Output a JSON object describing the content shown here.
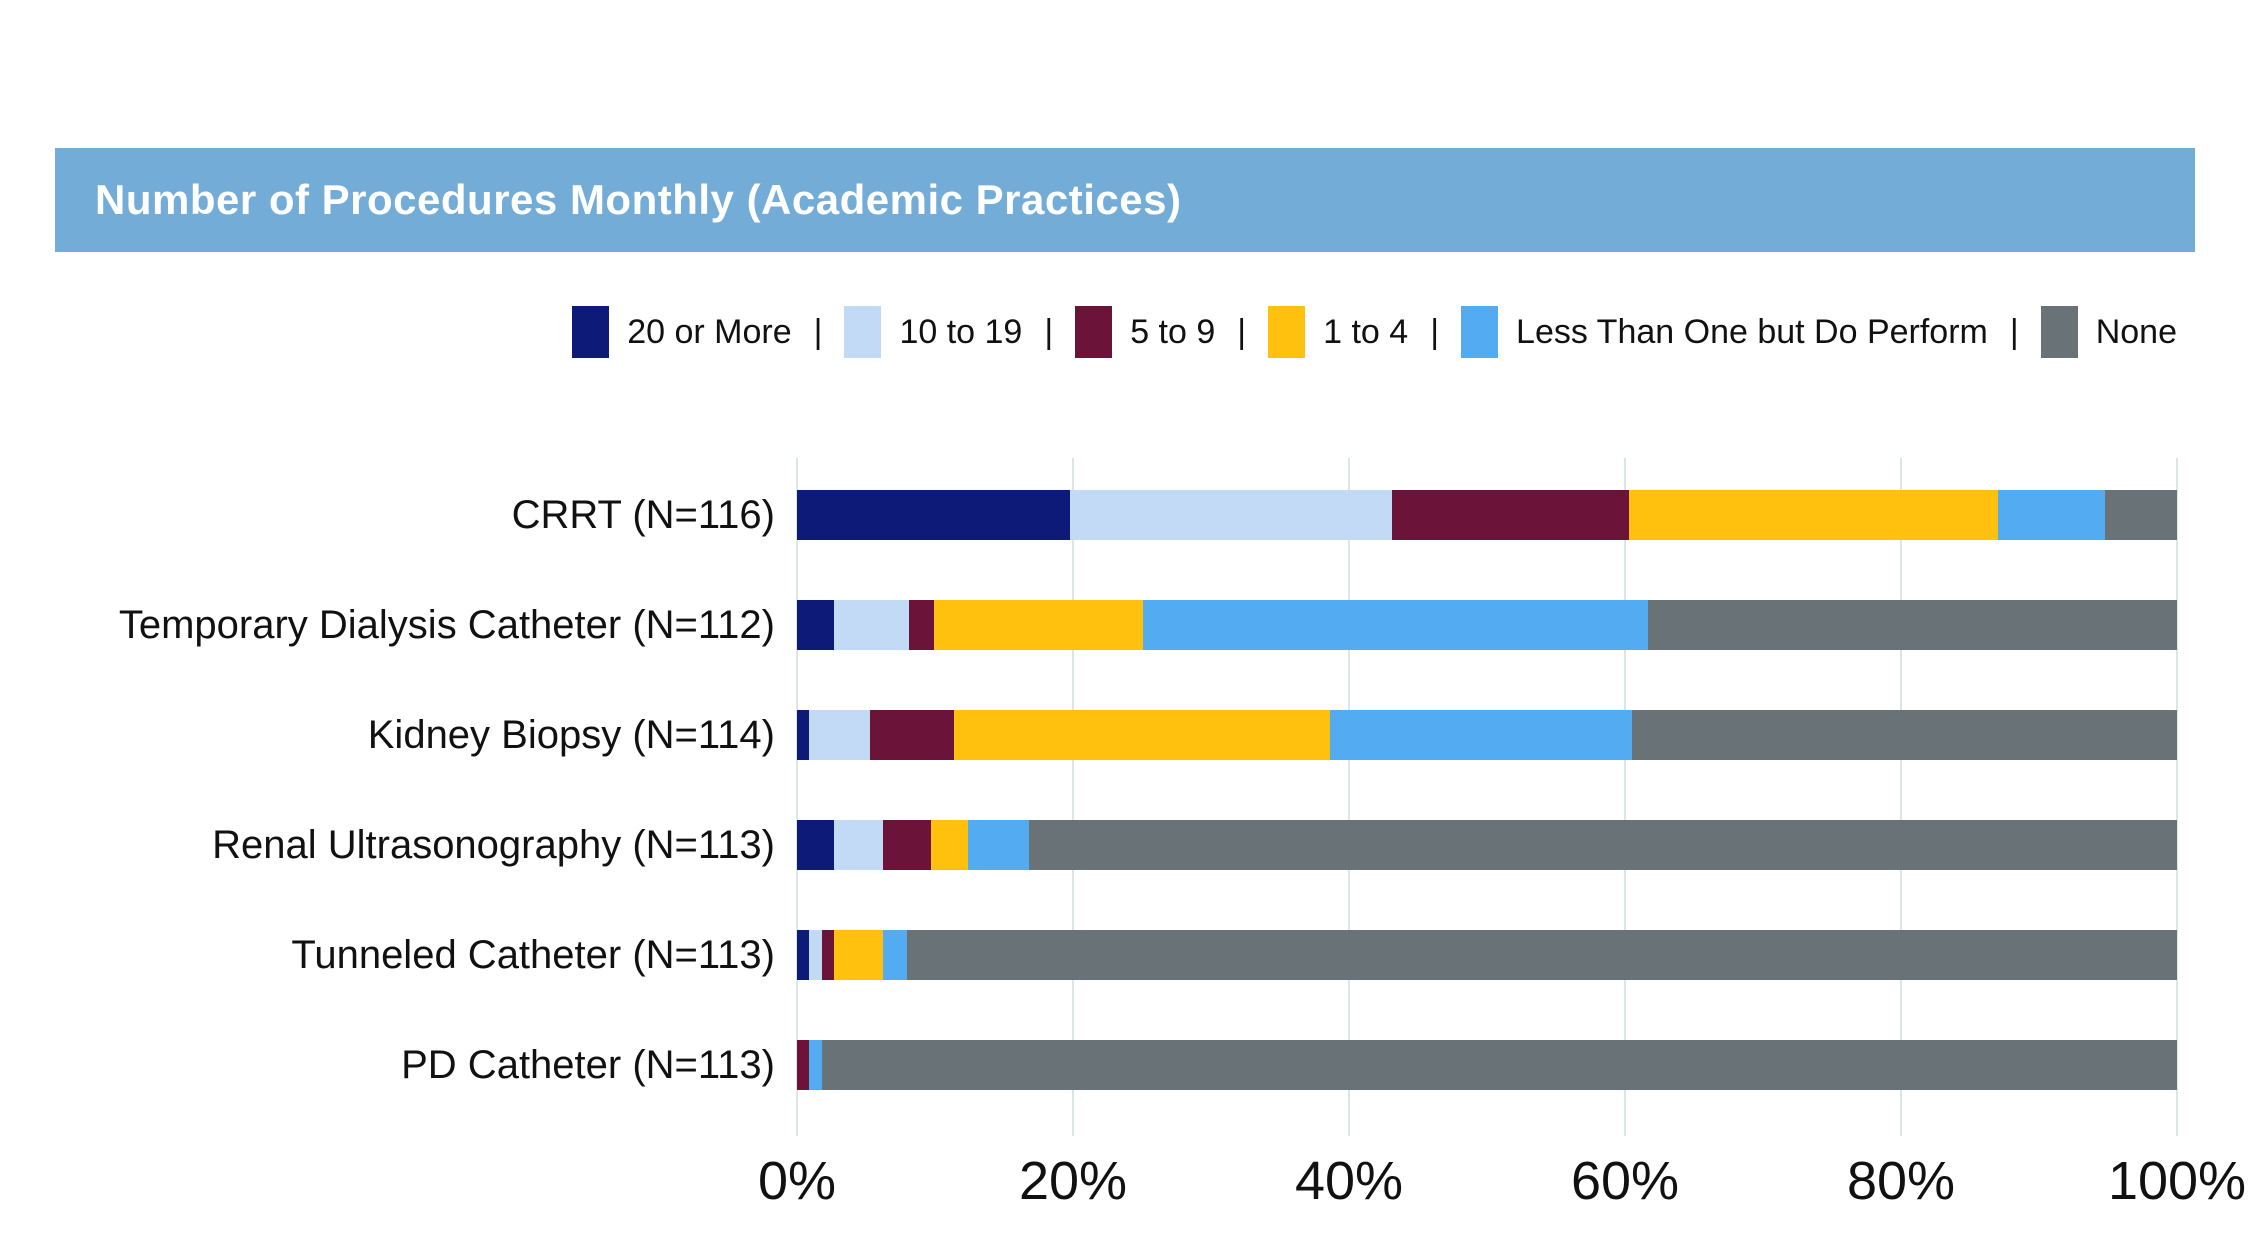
{
  "title_bar": {
    "text": "Number of Procedures Monthly (Academic Practices)",
    "bg_color": "#73ACD6",
    "text_color": "#FFFFFF"
  },
  "legend": {
    "separator": "|",
    "items": [
      {
        "label": "20 or More",
        "color": "#0D1A78"
      },
      {
        "label": "10 to 19",
        "color": "#C3DAF6"
      },
      {
        "label": "5 to 9",
        "color": "#6B1339"
      },
      {
        "label": "1 to 4",
        "color": "#FFC10E"
      },
      {
        "label": "Less Than One but Do Perform",
        "color": "#53ACF1"
      },
      {
        "label": "None",
        "color": "#697276"
      }
    ]
  },
  "chart_data": {
    "type": "bar",
    "orientation": "horizontal",
    "stacked": true,
    "title": "Number of Procedures Monthly (Academic Practices)",
    "categories": [
      "CRRT (N=116)",
      "Temporary Dialysis Catheter (N=112)",
      "Kidney Biopsy (N=114)",
      "Renal Ultrasonography (N=113)",
      "Tunneled Catheter (N=113)",
      "PD Catheter (N=113)"
    ],
    "series": [
      {
        "name": "20 or More",
        "color": "#0D1A78",
        "values": [
          19.8,
          2.7,
          0.9,
          2.7,
          0.9,
          0.0
        ]
      },
      {
        "name": "10 to 19",
        "color": "#C3DAF6",
        "values": [
          23.3,
          5.4,
          4.4,
          3.5,
          0.9,
          0.0
        ]
      },
      {
        "name": "5 to 9",
        "color": "#6B1339",
        "values": [
          17.2,
          1.8,
          6.1,
          3.5,
          0.9,
          0.9
        ]
      },
      {
        "name": "1 to 4",
        "color": "#FFC10E",
        "values": [
          26.7,
          15.2,
          27.2,
          2.7,
          3.5,
          0.0
        ]
      },
      {
        "name": "Less Than One but Do Perform",
        "color": "#53ACF1",
        "values": [
          7.8,
          36.6,
          21.9,
          4.4,
          1.8,
          0.9
        ]
      },
      {
        "name": "None",
        "color": "#697276",
        "values": [
          5.2,
          38.3,
          39.5,
          83.2,
          92.0,
          98.2
        ]
      }
    ],
    "x_tick_labels": [
      "0%",
      "20%",
      "40%",
      "60%",
      "80%",
      "100%"
    ],
    "xlim": [
      0,
      100
    ],
    "grid": true,
    "grid_color": "#D9E8E4",
    "legend_position": "top"
  },
  "axis": {
    "ticks": [
      "0%",
      "20%",
      "40%",
      "60%",
      "80%",
      "100%"
    ]
  }
}
